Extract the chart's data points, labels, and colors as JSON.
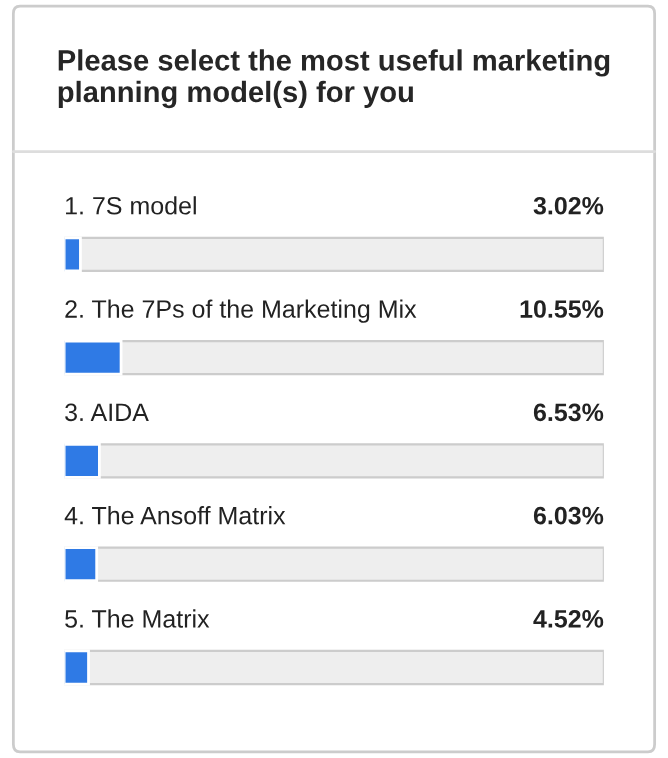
{
  "chart_data": {
    "type": "bar",
    "orientation": "horizontal",
    "title": "Please select the most useful marketing planning model(s) for you",
    "categories": [
      "1. 7S model",
      "2. The 7Ps of the Marketing Mix",
      "3. AIDA",
      "4. The Ansoff Matrix",
      "5. The Matrix"
    ],
    "values": [
      3.02,
      10.55,
      6.53,
      6.03,
      4.52
    ],
    "value_labels": [
      "3.02%",
      "10.55%",
      "6.53%",
      "6.03%",
      "4.52%"
    ],
    "color": "#2f7ae5",
    "xlim": [
      0,
      100
    ]
  }
}
